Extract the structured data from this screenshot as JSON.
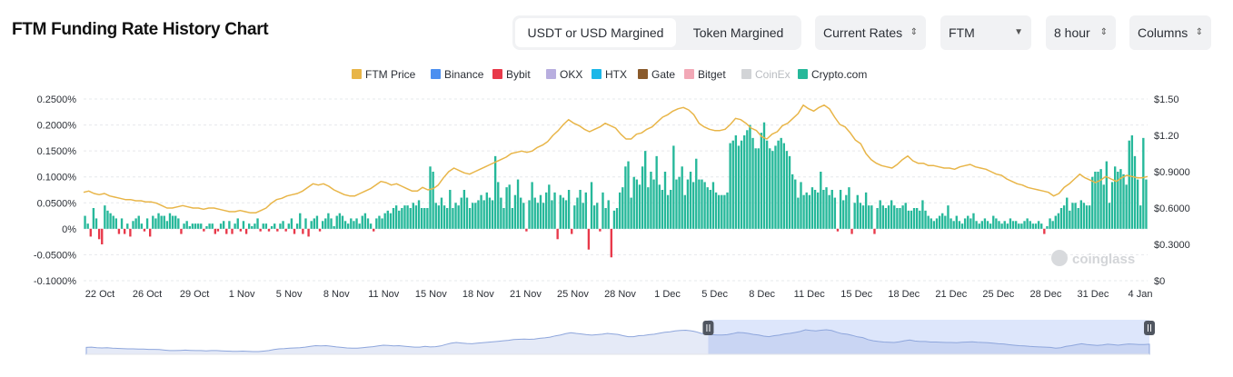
{
  "title": "FTM Funding Rate History Chart",
  "controls": {
    "margin_tabs": [
      "USDT or USD Margined",
      "Token Margined"
    ],
    "rates_select": "Current Rates",
    "symbol_select": "FTM",
    "interval_select": "8 hour",
    "view_select": "Columns"
  },
  "watermark": "coinglass",
  "colors": {
    "price": "#E8B548",
    "positive": "#26B89A",
    "negative": "#E8394A",
    "navigator_fill": "#dde6fb"
  },
  "chart_data": {
    "type": "bar",
    "legend": [
      {
        "name": "FTM Price",
        "color": "#E8B548",
        "enabled": true
      },
      {
        "name": "Binance",
        "color": "#4C8FF0",
        "enabled": true
      },
      {
        "name": "Bybit",
        "color": "#E8394A",
        "enabled": true
      },
      {
        "name": "OKX",
        "color": "#B8AEDF",
        "enabled": true
      },
      {
        "name": "HTX",
        "color": "#1CB7E8",
        "enabled": true
      },
      {
        "name": "Gate",
        "color": "#8A5A2B",
        "enabled": true
      },
      {
        "name": "Bitget",
        "color": "#F2A8B6",
        "enabled": true
      },
      {
        "name": "CoinEx",
        "color": "#C8C8C8",
        "enabled": false
      },
      {
        "name": "Crypto.com",
        "color": "#26B89A",
        "enabled": true
      }
    ],
    "x_labels": [
      "22 Oct",
      "26 Oct",
      "29 Oct",
      "1 Nov",
      "5 Nov",
      "8 Nov",
      "11 Nov",
      "15 Nov",
      "18 Nov",
      "21 Nov",
      "25 Nov",
      "28 Nov",
      "1 Dec",
      "5 Dec",
      "8 Dec",
      "11 Dec",
      "15 Dec",
      "18 Dec",
      "21 Dec",
      "25 Dec",
      "28 Dec",
      "31 Dec",
      "4 Jan"
    ],
    "y_left_ticks": [
      "0.2500%",
      "0.2000%",
      "0.1500%",
      "0.1000%",
      "0.0500%",
      "0%",
      "-0.0500%",
      "-0.1000%"
    ],
    "y_right_ticks": [
      "$1.50",
      "$1.20",
      "$0.9000",
      "$0.6000",
      "$0.3000",
      "$0"
    ],
    "y_left_range": [
      -0.1,
      0.25
    ],
    "y_right_range": [
      0,
      1.5
    ],
    "grid": "horizontal-dashed",
    "funding_rate": [
      0.025,
      0.01,
      -0.015,
      0.04,
      0.02,
      -0.02,
      -0.03,
      0.045,
      0.035,
      0.03,
      0.025,
      0.02,
      -0.01,
      0.02,
      -0.01,
      0.01,
      -0.015,
      0.015,
      0.02,
      0.025,
      0.01,
      -0.005,
      0.02,
      -0.015,
      0.025,
      0.02,
      0.03,
      0.025,
      0.025,
      0.015,
      0.03,
      0.025,
      0.025,
      0.02,
      -0.01,
      0.01,
      0.015,
      0.005,
      0.01,
      0.01,
      0.01,
      0.01,
      -0.005,
      0.005,
      0.01,
      0.01,
      -0.01,
      -0.005,
      0.01,
      0.015,
      -0.01,
      0.015,
      -0.01,
      0.01,
      0.02,
      -0.005,
      0.015,
      -0.01,
      0.01,
      0.005,
      0.01,
      0.02,
      -0.005,
      0.01,
      0.01,
      -0.005,
      0.005,
      0.01,
      -0.005,
      0.01,
      0.015,
      -0.005,
      0.01,
      0.02,
      -0.01,
      0.01,
      0.03,
      -0.01,
      0.02,
      -0.015,
      0.015,
      0.02,
      0.025,
      -0.005,
      0.015,
      0.02,
      0.03,
      0.02,
      0.005,
      0.025,
      0.03,
      0.025,
      0.015,
      0.01,
      0.02,
      0.015,
      0.02,
      0.01,
      0.025,
      0.03,
      0.02,
      0.01,
      -0.005,
      0.02,
      0.025,
      0.02,
      0.03,
      0.035,
      0.03,
      0.04,
      0.045,
      0.035,
      0.04,
      0.045,
      0.045,
      0.04,
      0.05,
      0.045,
      0.055,
      0.04,
      0.04,
      0.04,
      0.12,
      0.11,
      0.05,
      0.045,
      0.06,
      0.045,
      0.04,
      0.075,
      0.04,
      0.05,
      0.045,
      0.06,
      0.075,
      0.06,
      0.04,
      0.05,
      0.05,
      0.055,
      0.065,
      0.055,
      0.07,
      0.06,
      0.055,
      0.14,
      0.09,
      0.06,
      0.04,
      0.08,
      0.085,
      0.04,
      0.065,
      0.095,
      0.06,
      0.05,
      -0.005,
      0.055,
      0.09,
      0.06,
      0.05,
      0.065,
      0.05,
      0.07,
      0.085,
      0.055,
      0.07,
      -0.02,
      0.065,
      0.06,
      0.055,
      0.075,
      -0.01,
      0.045,
      0.06,
      0.075,
      0.05,
      0.07,
      -0.04,
      0.09,
      0.045,
      0.05,
      -0.005,
      0.07,
      0.04,
      0.055,
      -0.055,
      0.035,
      0.04,
      0.07,
      0.08,
      0.12,
      0.13,
      0.06,
      0.1,
      0.095,
      0.085,
      0.12,
      0.15,
      0.08,
      0.11,
      0.095,
      0.14,
      0.085,
      0.075,
      0.11,
      0.065,
      0.075,
      0.16,
      0.095,
      0.1,
      0.12,
      0.065,
      0.095,
      0.11,
      0.09,
      0.135,
      0.095,
      0.095,
      0.09,
      0.08,
      0.075,
      0.09,
      0.07,
      0.065,
      0.065,
      0.065,
      0.07,
      0.165,
      0.17,
      0.18,
      0.16,
      0.17,
      0.18,
      0.19,
      0.2,
      0.175,
      0.155,
      0.155,
      0.185,
      0.205,
      0.17,
      0.155,
      0.15,
      0.16,
      0.17,
      0.175,
      0.165,
      0.15,
      0.14,
      0.105,
      0.095,
      0.06,
      0.09,
      0.065,
      0.07,
      0.065,
      0.08,
      0.075,
      0.07,
      0.11,
      0.075,
      0.08,
      0.065,
      0.075,
      0.06,
      -0.005,
      0.075,
      0.055,
      0.065,
      0.08,
      -0.01,
      0.05,
      0.065,
      0.05,
      0.045,
      0.07,
      0.045,
      0.045,
      -0.01,
      0.04,
      0.055,
      0.045,
      0.04,
      0.045,
      0.055,
      0.045,
      0.04,
      0.04,
      0.045,
      0.05,
      0.035,
      0.035,
      0.04,
      0.04,
      0.035,
      0.055,
      0.035,
      0.025,
      0.02,
      0.015,
      0.02,
      0.025,
      0.03,
      0.025,
      0.045,
      0.02,
      0.015,
      0.025,
      0.015,
      0.01,
      0.02,
      0.025,
      0.02,
      0.03,
      0.015,
      0.01,
      0.015,
      0.02,
      0.015,
      0.01,
      0.025,
      0.02,
      0.015,
      0.01,
      0.015,
      0.01,
      0.02,
      0.015,
      0.015,
      0.01,
      0.01,
      0.015,
      0.02,
      0.015,
      0.01,
      0.01,
      0.015,
      0.01,
      -0.01,
      0.005,
      0.02,
      0.015,
      0.025,
      0.03,
      0.04,
      0.045,
      0.06,
      0.035,
      0.05,
      0.05,
      0.04,
      0.055,
      0.05,
      0.045,
      0.045,
      0.1,
      0.11,
      0.11,
      0.115,
      0.085,
      0.13,
      0.05,
      0.09,
      0.12,
      0.11,
      0.115,
      0.105,
      0.085,
      0.17,
      0.18,
      0.14,
      0.095,
      0.045,
      0.175,
      0.095
    ],
    "price": [
      0.73,
      0.74,
      0.72,
      0.71,
      0.72,
      0.7,
      0.69,
      0.68,
      0.67,
      0.67,
      0.66,
      0.66,
      0.65,
      0.65,
      0.64,
      0.62,
      0.6,
      0.6,
      0.61,
      0.62,
      0.61,
      0.6,
      0.6,
      0.59,
      0.6,
      0.6,
      0.59,
      0.58,
      0.57,
      0.57,
      0.58,
      0.57,
      0.56,
      0.56,
      0.58,
      0.6,
      0.64,
      0.67,
      0.68,
      0.7,
      0.71,
      0.72,
      0.74,
      0.77,
      0.8,
      0.79,
      0.8,
      0.78,
      0.75,
      0.73,
      0.71,
      0.7,
      0.7,
      0.72,
      0.74,
      0.76,
      0.79,
      0.82,
      0.81,
      0.79,
      0.8,
      0.78,
      0.76,
      0.74,
      0.74,
      0.77,
      0.75,
      0.76,
      0.79,
      0.85,
      0.9,
      0.93,
      0.91,
      0.89,
      0.88,
      0.9,
      0.92,
      0.94,
      0.96,
      0.98,
      1.0,
      1.02,
      1.05,
      1.06,
      1.07,
      1.06,
      1.07,
      1.1,
      1.12,
      1.15,
      1.2,
      1.24,
      1.29,
      1.33,
      1.3,
      1.28,
      1.25,
      1.23,
      1.25,
      1.27,
      1.3,
      1.28,
      1.26,
      1.21,
      1.17,
      1.17,
      1.21,
      1.22,
      1.25,
      1.27,
      1.31,
      1.35,
      1.37,
      1.4,
      1.42,
      1.43,
      1.41,
      1.37,
      1.3,
      1.27,
      1.25,
      1.24,
      1.24,
      1.25,
      1.29,
      1.34,
      1.33,
      1.3,
      1.26,
      1.24,
      1.19,
      1.17,
      1.21,
      1.23,
      1.28,
      1.3,
      1.34,
      1.38,
      1.45,
      1.42,
      1.4,
      1.43,
      1.45,
      1.42,
      1.35,
      1.29,
      1.27,
      1.22,
      1.16,
      1.13,
      1.05,
      1.0,
      0.97,
      0.95,
      0.94,
      0.93,
      0.96,
      1.0,
      1.03,
      0.99,
      0.97,
      0.97,
      0.95,
      0.95,
      0.94,
      0.93,
      0.93,
      0.92,
      0.94,
      0.95,
      0.96,
      0.94,
      0.93,
      0.92,
      0.9,
      0.88,
      0.87,
      0.84,
      0.82,
      0.8,
      0.79,
      0.77,
      0.76,
      0.75,
      0.74,
      0.73,
      0.7,
      0.72,
      0.77,
      0.8,
      0.84,
      0.88,
      0.85,
      0.83,
      0.81,
      0.83,
      0.86,
      0.84,
      0.82,
      0.85,
      0.87,
      0.86,
      0.85,
      0.85,
      0.86
    ],
    "range_selector": {
      "start_fraction": 0.585,
      "end_fraction": 1.0
    }
  }
}
